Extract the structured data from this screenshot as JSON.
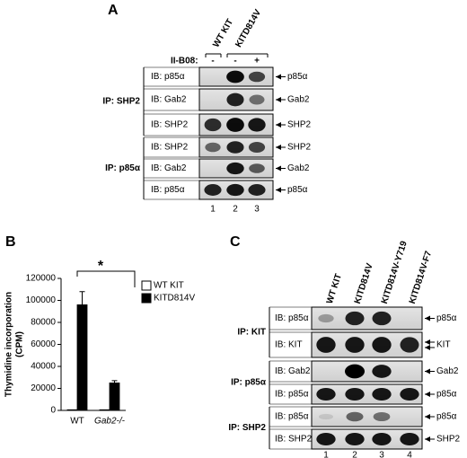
{
  "panel_a": {
    "label": "A",
    "columns": [
      "WT KIT",
      "KITD814V"
    ],
    "treatment_label": "II-B08:",
    "treatments": [
      "-",
      "-",
      "+"
    ],
    "groups": [
      {
        "ip": "IP: SHP2",
        "rows": [
          {
            "ib": "IB: p85α",
            "marker": "p85α"
          },
          {
            "ib": "IB: Gab2",
            "marker": "Gab2"
          },
          {
            "ib": "IB: SHP2",
            "marker": "SHP2"
          }
        ]
      },
      {
        "ip": "IP: p85α",
        "rows": [
          {
            "ib": "IB: SHP2",
            "marker": "SHP2"
          },
          {
            "ib": "IB: Gab2",
            "marker": "Gab2"
          },
          {
            "ib": "IB: p85α",
            "marker": "p85α"
          }
        ]
      }
    ],
    "lanes": [
      "1",
      "2",
      "3"
    ]
  },
  "chart_data": {
    "type": "bar",
    "panel_label": "B",
    "y_label": [
      "Thymidine incorporation",
      "(CPM)"
    ],
    "categories": [
      "WT",
      "Gab2-/-"
    ],
    "series": [
      {
        "name": "WT KIT",
        "color": "#ffffff",
        "values": [
          600,
          600
        ]
      },
      {
        "name": "KITD814V",
        "color": "#000000",
        "values": [
          96000,
          25000
        ],
        "errors": [
          12000,
          2000
        ]
      }
    ],
    "ylim": [
      0,
      120000
    ],
    "yticks": [
      0,
      20000,
      40000,
      60000,
      80000,
      100000,
      120000
    ],
    "annotation": "*",
    "legend": "right"
  },
  "panel_c": {
    "label": "C",
    "columns": [
      "WT KIT",
      "KITD814V",
      "KITD814V-Y719",
      "KITD814V-F7"
    ],
    "groups": [
      {
        "ip": "IP: KIT",
        "rows": [
          {
            "ib": "IB: p85α",
            "marker": "p85α"
          },
          {
            "ib": "IB: KIT",
            "marker": "KIT"
          }
        ]
      },
      {
        "ip": "IP: p85α",
        "rows": [
          {
            "ib": "IB: Gab2",
            "marker": "Gab2"
          },
          {
            "ib": "IB: p85α",
            "marker": "p85α"
          }
        ]
      },
      {
        "ip": "IP: SHP2",
        "rows": [
          {
            "ib": "IB: p85α",
            "marker": "p85α"
          },
          {
            "ib": "IB: SHP2",
            "marker": "SHP2"
          }
        ]
      }
    ],
    "lanes": [
      "1",
      "2",
      "3",
      "4"
    ]
  }
}
